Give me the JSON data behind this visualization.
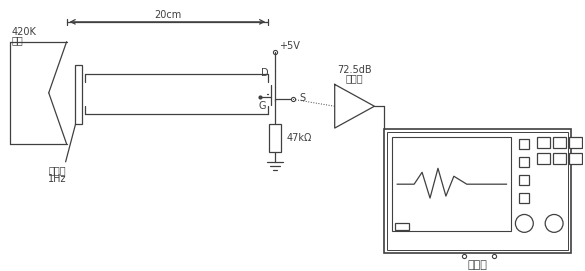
{
  "bg_color": "#ffffff",
  "line_color": "#404040",
  "text_color": "#404040",
  "fig_width": 5.85,
  "fig_height": 2.71,
  "dpi": 100,
  "labels": {
    "blackbody_temp": "420K",
    "blackbody": "黒体",
    "chopper": "斩波器",
    "chopper_freq": "1Hz",
    "voltage": "+5V",
    "drain": "D",
    "source": "S",
    "gate": "G",
    "resistor": "47kΩ",
    "amp_db": "72.5dB",
    "amp": "放大器",
    "osc": "示波器",
    "distance": "20cm"
  }
}
